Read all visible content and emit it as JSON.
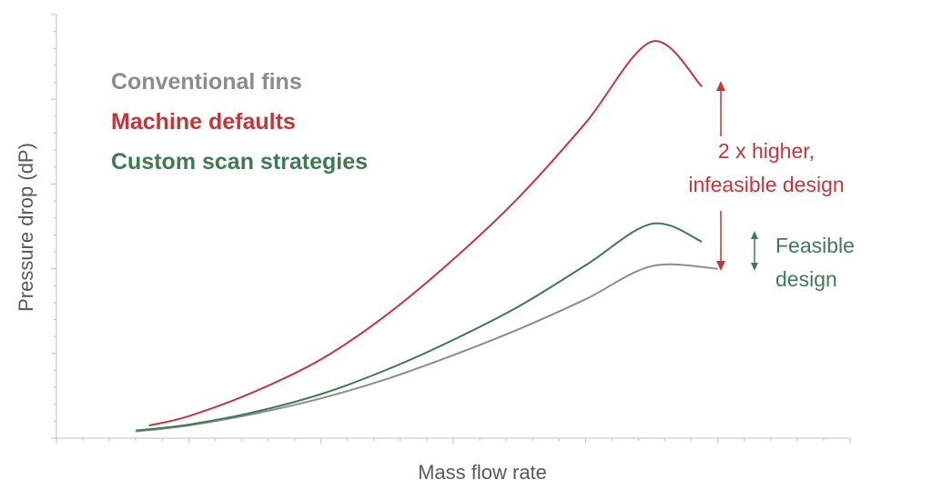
{
  "chart_data": {
    "type": "line",
    "title": "",
    "xlabel": "Mass flow rate",
    "ylabel": "Pressure drop (dP)",
    "xlim": [
      0,
      60
    ],
    "ylim": [
      0,
      50
    ],
    "grid": false,
    "tick_labels": false,
    "legend_position": "top-left",
    "series": [
      {
        "name": "Conventional fins",
        "color": "#8c8c8c",
        "x": [
          6,
          10,
          15,
          20,
          25,
          30,
          35,
          40,
          45,
          50
        ],
        "y": [
          0.8,
          1.5,
          2.9,
          4.7,
          7.0,
          9.8,
          12.9,
          16.4,
          20.3,
          20.0
        ]
      },
      {
        "name": "Machine defaults",
        "color": "#c0373c",
        "x": [
          7,
          10,
          15,
          20,
          25,
          30,
          35,
          40,
          45,
          48.8
        ],
        "y": [
          1.5,
          2.6,
          5.5,
          9.3,
          14.6,
          21.1,
          28.5,
          37.2,
          46.8,
          41.5
        ]
      },
      {
        "name": "Custom scan strategies",
        "color": "#3f7a55",
        "x": [
          6,
          10,
          15,
          20,
          25,
          30,
          35,
          40,
          45,
          48.8
        ],
        "y": [
          0.9,
          1.6,
          3.1,
          5.2,
          8.1,
          11.6,
          15.6,
          20.4,
          25.3,
          23.2
        ]
      }
    ],
    "annotations": [
      {
        "id": "infeasible",
        "lines": [
          "2 x higher,",
          "infeasible design"
        ],
        "color": "#c0373c"
      },
      {
        "id": "feasible",
        "lines": [
          "Feasible",
          "design"
        ],
        "color": "#3f7a55"
      }
    ]
  }
}
